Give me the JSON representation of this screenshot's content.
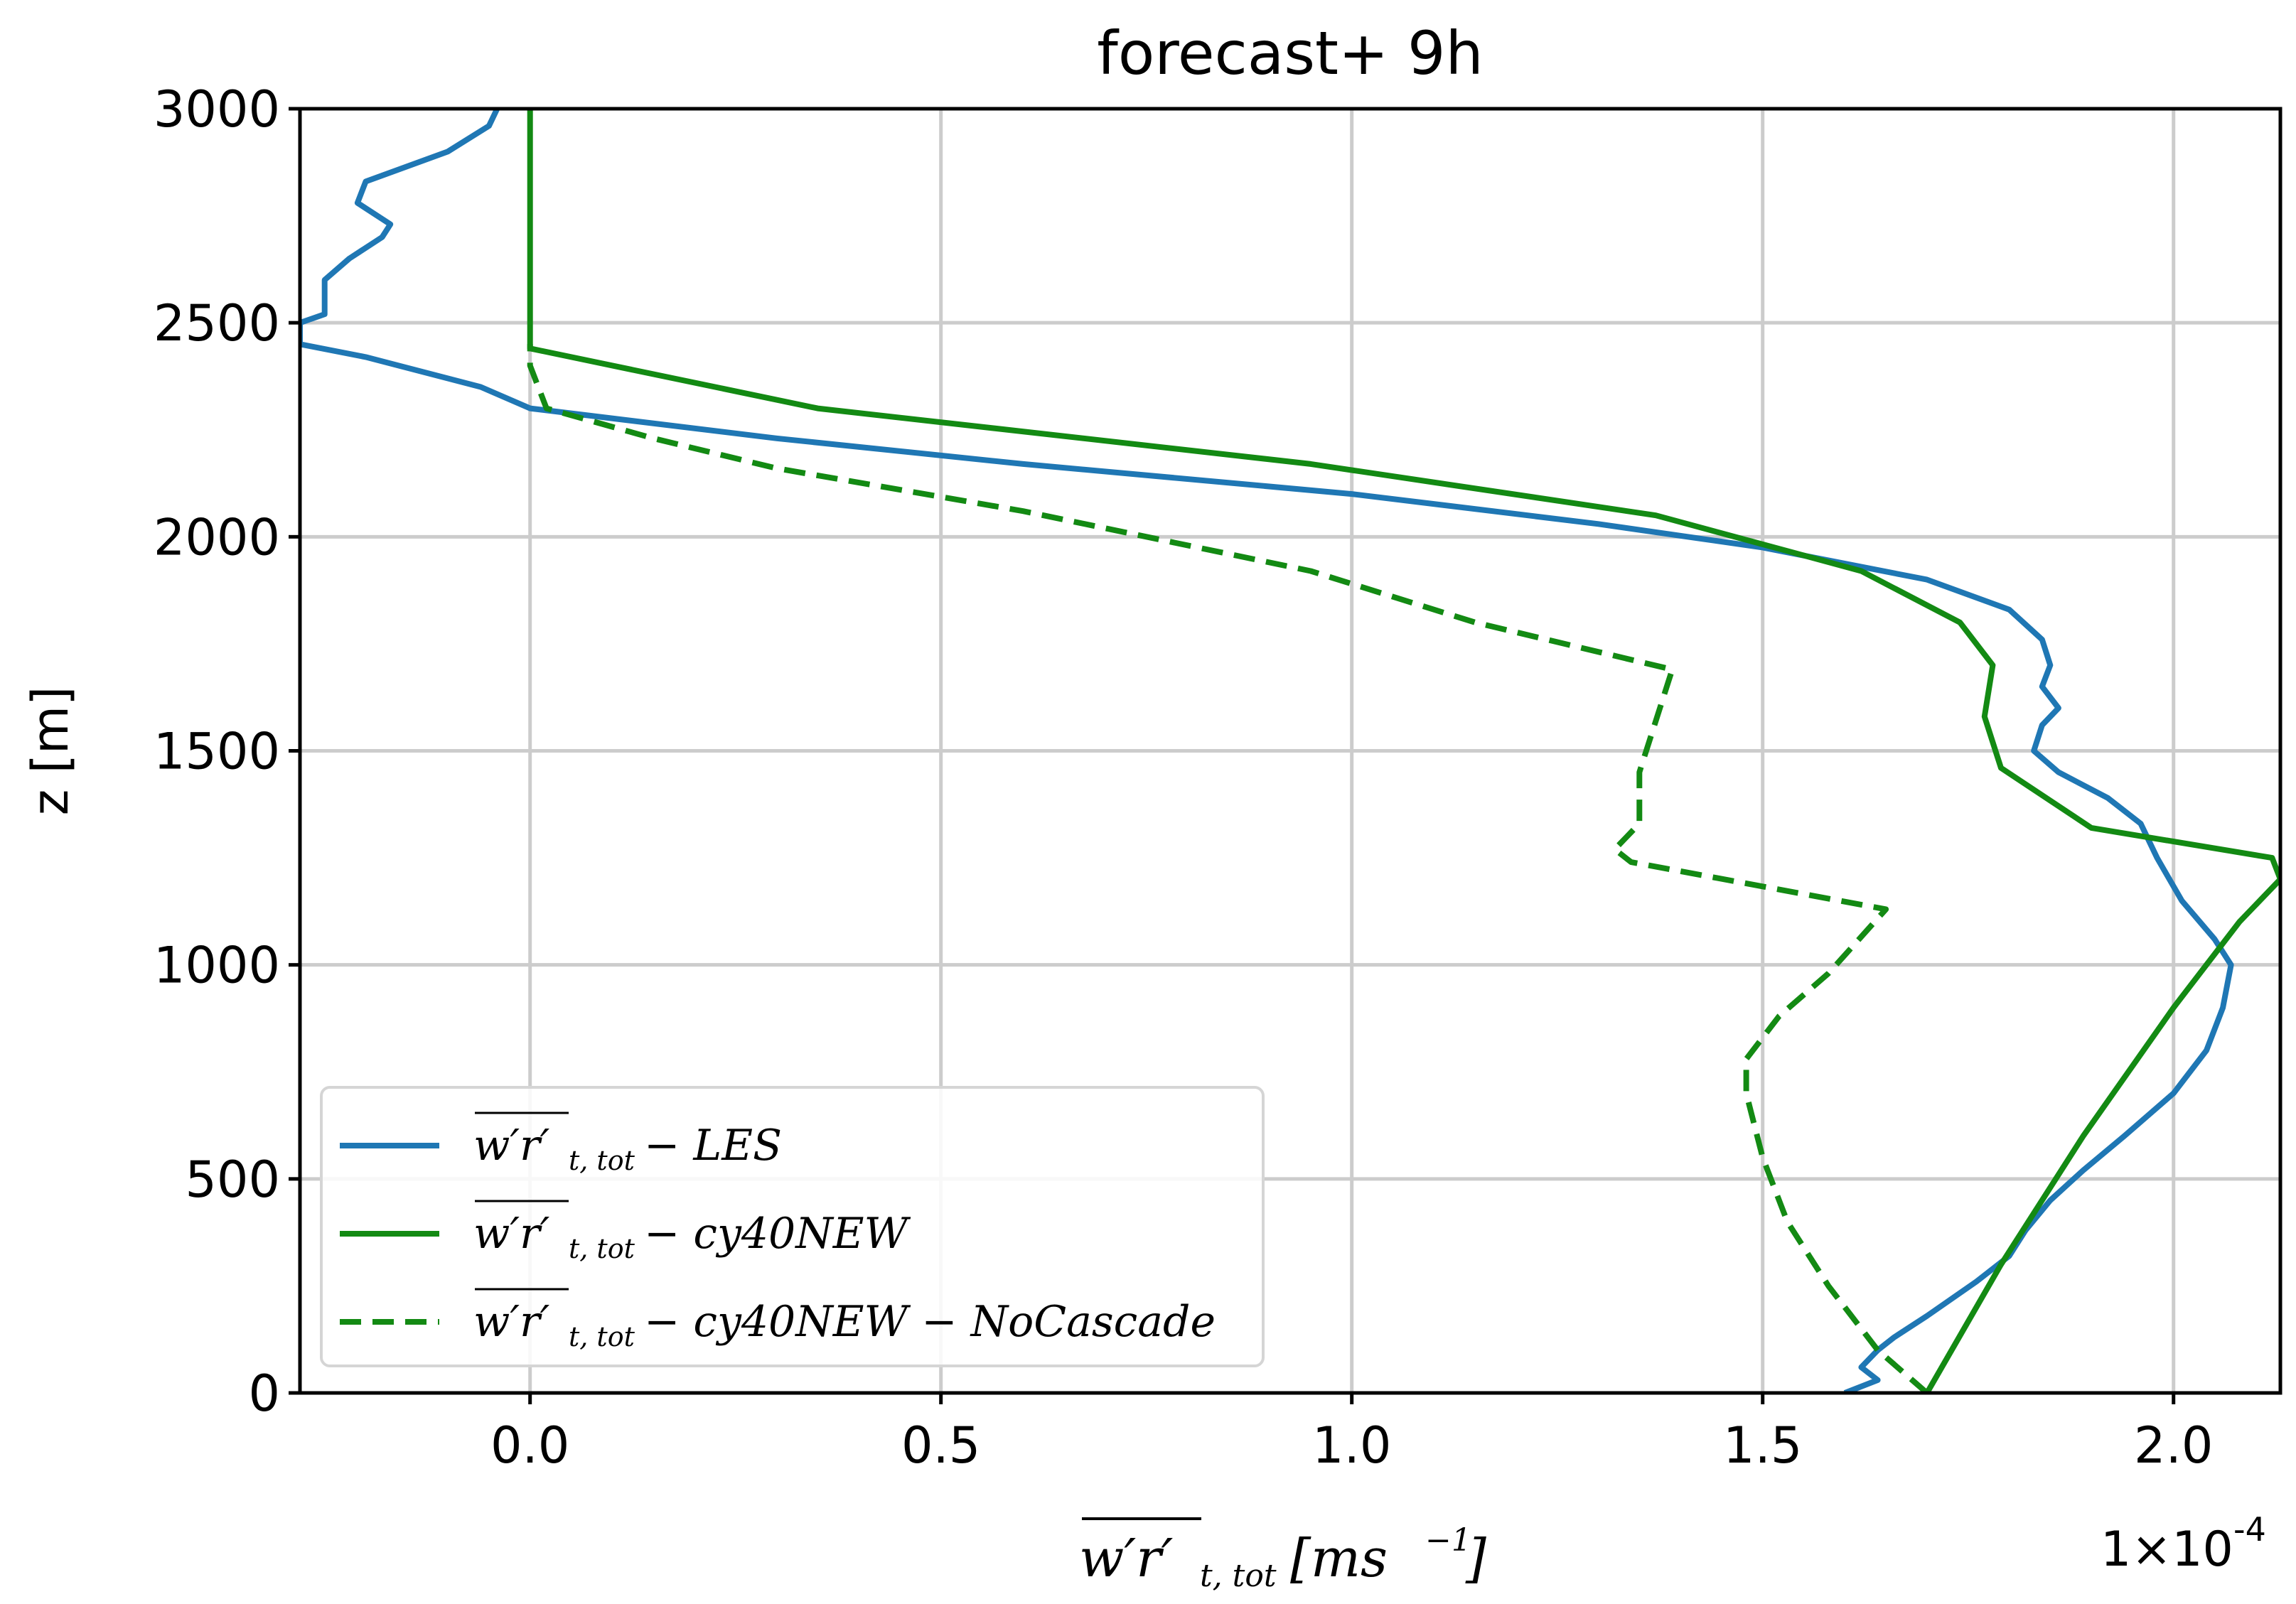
{
  "chart_data": {
    "type": "line",
    "title": "forecast+ 9h",
    "ylabel": "z [m]",
    "xlabel": {
      "overlined": "w′r′",
      "subscript": "t, tot",
      "units": "[ms",
      "units_exp": "−1",
      "units_close": "]"
    },
    "x_multiplier": "1×10",
    "x_multiplier_exp": "-4",
    "xlim": [
      -0.28,
      2.13
    ],
    "ylim": [
      0,
      3000
    ],
    "xticks": [
      0.0,
      0.5,
      1.0,
      1.5,
      2.0
    ],
    "xtick_labels": [
      "0.0",
      "0.5",
      "1.0",
      "1.5",
      "2.0"
    ],
    "yticks": [
      0,
      500,
      1000,
      1500,
      2000,
      2500,
      3000
    ],
    "ytick_labels": [
      "0",
      "500",
      "1000",
      "1500",
      "2000",
      "2500",
      "3000"
    ],
    "grid": true,
    "legend_position": "lower-left",
    "series": [
      {
        "name": "LES",
        "legend_overlined": "w′r′",
        "legend_sub": "t, tot",
        "legend_suffix": "− LES",
        "color": "#1f77b4",
        "style": "solid",
        "points": [
          [
            1.6,
            0
          ],
          [
            1.64,
            30
          ],
          [
            1.62,
            60
          ],
          [
            1.64,
            100
          ],
          [
            1.66,
            130
          ],
          [
            1.7,
            180
          ],
          [
            1.76,
            260
          ],
          [
            1.8,
            320
          ],
          [
            1.82,
            380
          ],
          [
            1.85,
            450
          ],
          [
            1.89,
            520
          ],
          [
            1.94,
            600
          ],
          [
            2.0,
            700
          ],
          [
            2.04,
            800
          ],
          [
            2.06,
            900
          ],
          [
            2.07,
            1000
          ],
          [
            2.05,
            1060
          ],
          [
            2.01,
            1150
          ],
          [
            1.98,
            1250
          ],
          [
            1.96,
            1330
          ],
          [
            1.92,
            1390
          ],
          [
            1.86,
            1450
          ],
          [
            1.83,
            1500
          ],
          [
            1.84,
            1560
          ],
          [
            1.86,
            1600
          ],
          [
            1.84,
            1650
          ],
          [
            1.85,
            1700
          ],
          [
            1.84,
            1760
          ],
          [
            1.8,
            1830
          ],
          [
            1.7,
            1900
          ],
          [
            1.5,
            1975
          ],
          [
            1.3,
            2030
          ],
          [
            1.0,
            2100
          ],
          [
            0.6,
            2170
          ],
          [
            0.3,
            2230
          ],
          [
            0.0,
            2300
          ],
          [
            -0.06,
            2350
          ],
          [
            -0.2,
            2420
          ],
          [
            -0.28,
            2450
          ],
          [
            -0.28,
            2500
          ],
          [
            -0.25,
            2520
          ],
          [
            -0.25,
            2600
          ],
          [
            -0.22,
            2650
          ],
          [
            -0.18,
            2700
          ],
          [
            -0.17,
            2730
          ],
          [
            -0.21,
            2780
          ],
          [
            -0.2,
            2830
          ],
          [
            -0.1,
            2900
          ],
          [
            -0.05,
            2960
          ],
          [
            -0.04,
            3000
          ]
        ]
      },
      {
        "name": "cy40NEW",
        "legend_overlined": "w′r′",
        "legend_sub": "t, tot",
        "legend_suffix": "− cy40NEW",
        "color": "#138a13",
        "style": "solid",
        "points": [
          [
            1.7,
            0
          ],
          [
            1.79,
            300
          ],
          [
            1.89,
            600
          ],
          [
            2.0,
            900
          ],
          [
            2.08,
            1100
          ],
          [
            2.13,
            1200
          ],
          [
            2.12,
            1250
          ],
          [
            1.9,
            1320
          ],
          [
            1.79,
            1460
          ],
          [
            1.77,
            1580
          ],
          [
            1.78,
            1700
          ],
          [
            1.74,
            1800
          ],
          [
            1.62,
            1920
          ],
          [
            1.37,
            2050
          ],
          [
            0.95,
            2170
          ],
          [
            0.35,
            2300
          ],
          [
            0.0,
            2440
          ],
          [
            0.0,
            2500
          ],
          [
            0.0,
            2800
          ],
          [
            0.0,
            3000
          ]
        ]
      },
      {
        "name": "cy40NEW − NoCascade",
        "legend_overlined": "w′r′",
        "legend_sub": "t, tot",
        "legend_suffix": "− cy40NEW − NoCascade",
        "color": "#138a13",
        "style": "dashed",
        "points": [
          [
            1.7,
            0
          ],
          [
            1.64,
            100
          ],
          [
            1.58,
            250
          ],
          [
            1.53,
            400
          ],
          [
            1.5,
            550
          ],
          [
            1.48,
            700
          ],
          [
            1.48,
            780
          ],
          [
            1.52,
            880
          ],
          [
            1.58,
            980
          ],
          [
            1.65,
            1130
          ],
          [
            1.34,
            1240
          ],
          [
            1.32,
            1270
          ],
          [
            1.35,
            1330
          ],
          [
            1.35,
            1450
          ],
          [
            1.39,
            1690
          ],
          [
            1.15,
            1800
          ],
          [
            0.95,
            1920
          ],
          [
            0.6,
            2060
          ],
          [
            0.3,
            2160
          ],
          [
            0.15,
            2230
          ],
          [
            0.02,
            2300
          ],
          [
            0.0,
            2400
          ],
          [
            0.0,
            2450
          ]
        ]
      }
    ]
  }
}
